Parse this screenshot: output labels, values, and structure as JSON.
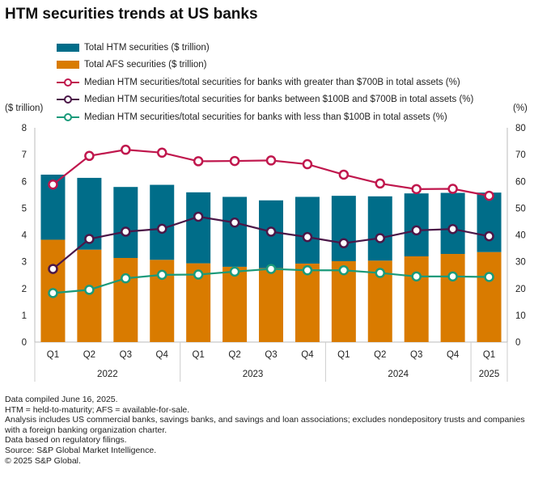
{
  "title": "HTM securities trends at US banks",
  "legend": [
    {
      "label": "Total HTM securities ($ trillion)",
      "color": "#006d89",
      "kind": "bar"
    },
    {
      "label": "Total AFS securities ($ trillion)",
      "color": "#d97b00",
      "kind": "bar"
    },
    {
      "label": "Median HTM securities/total securities for banks with greater than $700B in total assets (%)",
      "color": "#c0174d",
      "kind": "line"
    },
    {
      "label": "Median HTM securities/total securities for banks between $100B and $700B in total assets (%)",
      "color": "#4b1748",
      "kind": "line"
    },
    {
      "label": "Median HTM securities/total securities for banks with less than $100B in total assets (%)",
      "color": "#1a9a7a",
      "kind": "line"
    }
  ],
  "left_unit": "($ trillion)",
  "right_unit": "(%)",
  "chart_data": {
    "type": "bar",
    "title": "HTM securities trends at US banks",
    "categories": [
      "Q1",
      "Q2",
      "Q3",
      "Q4",
      "Q1",
      "Q2",
      "Q3",
      "Q4",
      "Q1",
      "Q2",
      "Q3",
      "Q4",
      "Q1"
    ],
    "years": [
      {
        "label": "2022",
        "count": 4
      },
      {
        "label": "2023",
        "count": 4
      },
      {
        "label": "2024",
        "count": 4
      },
      {
        "label": "2025",
        "count": 1
      }
    ],
    "ylim": [
      0,
      8
    ],
    "y_ticks": [
      "0",
      "1",
      "2",
      "3",
      "4",
      "5",
      "6",
      "7",
      "8"
    ],
    "y2lim": [
      0,
      80
    ],
    "y2_ticks": [
      "0",
      "10",
      "20",
      "30",
      "40",
      "50",
      "60",
      "70",
      "80"
    ],
    "stacked_bars": [
      {
        "name": "Total AFS securities ($ trillion)",
        "values": [
          3.82,
          3.45,
          3.14,
          3.07,
          2.94,
          2.81,
          2.76,
          2.93,
          3.02,
          3.04,
          3.2,
          3.29,
          3.36
        ]
      },
      {
        "name": "Total HTM securities ($ trillion)",
        "values": [
          2.43,
          2.68,
          2.65,
          2.8,
          2.65,
          2.61,
          2.53,
          2.49,
          2.44,
          2.4,
          2.35,
          2.28,
          2.22
        ]
      }
    ],
    "lines": [
      {
        "name": ">$700B",
        "values": [
          58.8,
          69.5,
          71.8,
          70.7,
          67.5,
          67.6,
          67.8,
          66.4,
          62.5,
          59.2,
          57.1,
          57.2,
          54.6
        ]
      },
      {
        "name": "$100B-$700B",
        "values": [
          27.3,
          38.5,
          41.2,
          42.3,
          46.8,
          44.6,
          41.2,
          39.2,
          36.9,
          38.8,
          41.7,
          42.2,
          39.5
        ]
      },
      {
        "name": "<$100B",
        "values": [
          18.3,
          19.5,
          23.8,
          25.1,
          25.2,
          26.3,
          27.3,
          26.8,
          26.8,
          25.8,
          24.5,
          24.5,
          24.3
        ]
      }
    ]
  },
  "notes": [
    "Data compiled June 16, 2025.",
    "HTM = held-to-maturity; AFS = available-for-sale.",
    "Analysis includes US commercial banks, savings banks, and savings and loan associations; excludes nondepository trusts and companies with a foreign banking organization charter.",
    "Data based on regulatory filings.",
    "Source: S&P Global Market Intelligence.",
    "© 2025 S&P Global."
  ]
}
